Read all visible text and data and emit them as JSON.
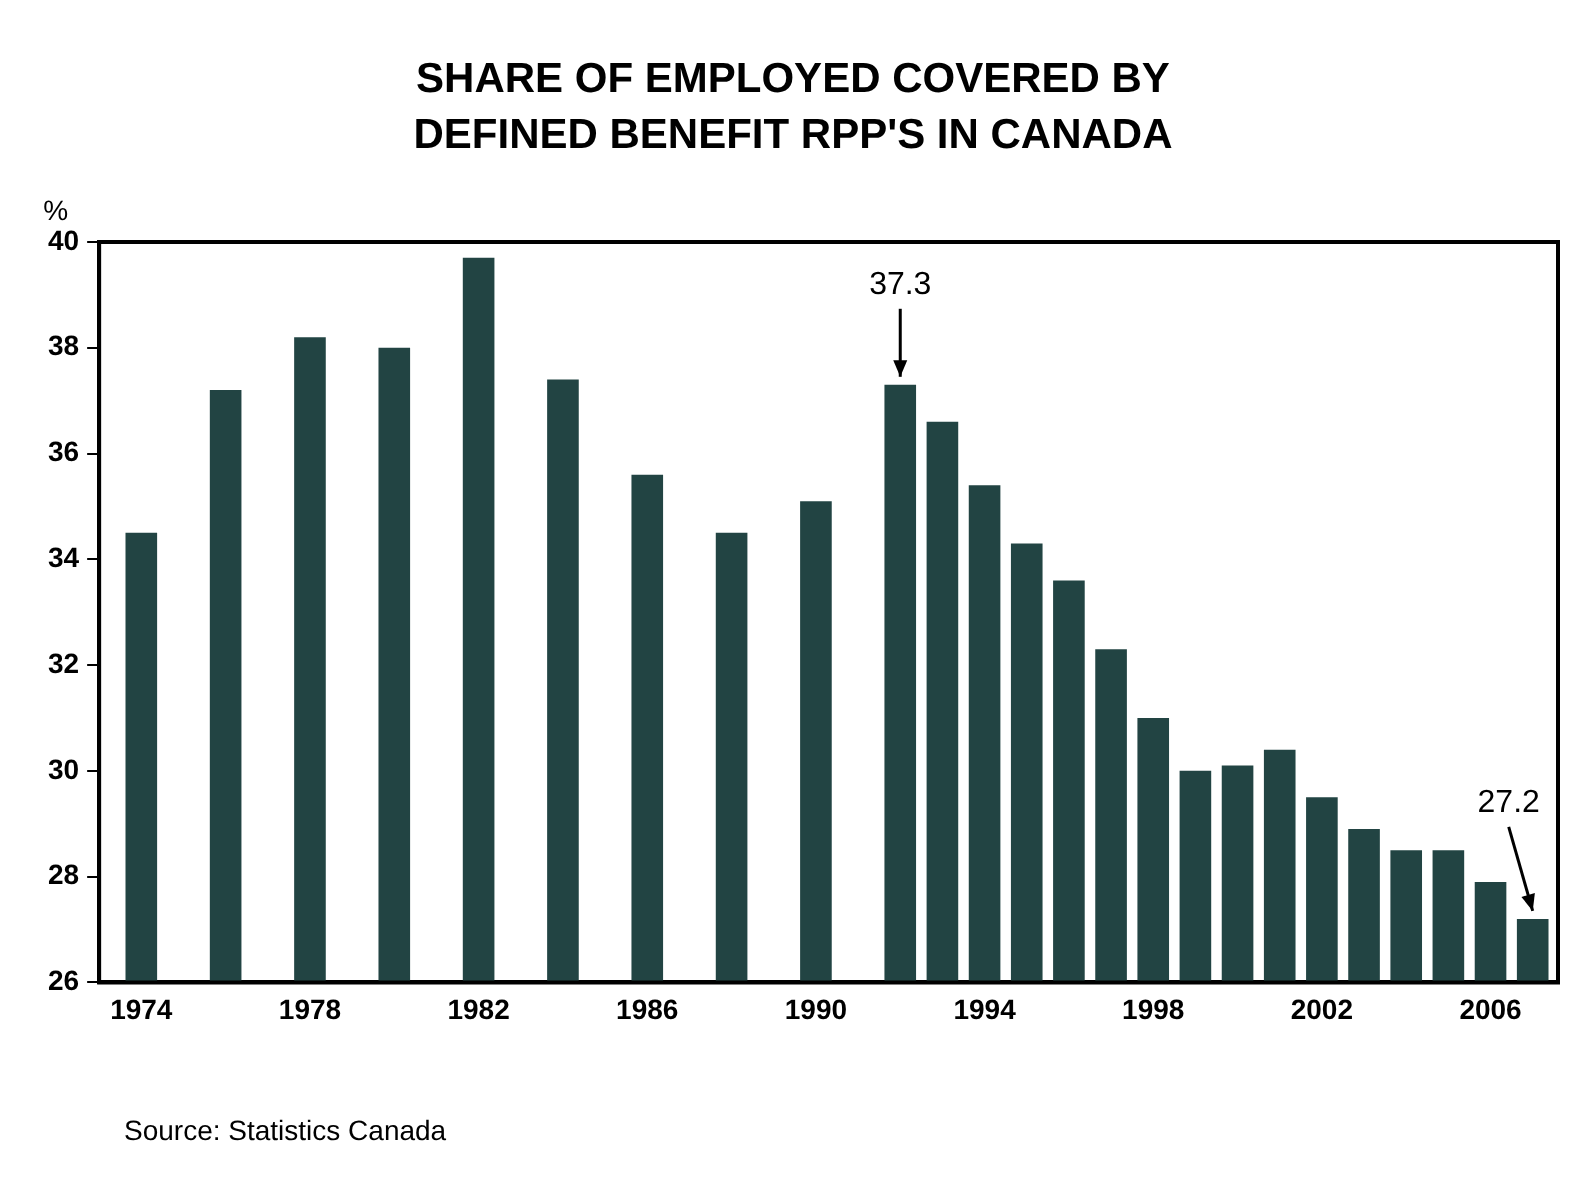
{
  "chart_data": {
    "type": "bar",
    "title": "SHARE OF EMPLOYED COVERED BY DEFINED BENEFIT RPP'S IN CANADA",
    "ylabel": "%",
    "x": [
      1974,
      1976,
      1978,
      1980,
      1982,
      1984,
      1986,
      1988,
      1990,
      1992,
      1993,
      1994,
      1995,
      1996,
      1997,
      1998,
      1999,
      2000,
      2001,
      2002,
      2003,
      2004,
      2005,
      2006,
      2007
    ],
    "values": [
      34.5,
      37.2,
      38.2,
      38.0,
      39.7,
      37.4,
      35.6,
      34.5,
      35.1,
      37.3,
      36.6,
      35.4,
      34.3,
      33.6,
      32.3,
      31.0,
      30.0,
      30.1,
      30.4,
      29.5,
      28.9,
      28.5,
      28.5,
      27.9,
      27.2
    ],
    "color": "#224443",
    "xlim": [
      1973,
      2007.6
    ],
    "xticks": [
      1974,
      1978,
      1982,
      1986,
      1990,
      1994,
      1998,
      2002,
      2006
    ],
    "ylim": [
      26,
      40
    ],
    "yticks": [
      26,
      28,
      30,
      32,
      34,
      36,
      38,
      40
    ],
    "grid": false,
    "legend": false,
    "annotations": [
      {
        "text": "37.3",
        "x": 1992,
        "y": 37.3
      },
      {
        "text": "27.2",
        "x": 2007,
        "y": 27.2
      },
      "Source: Statistics Canada"
    ]
  }
}
